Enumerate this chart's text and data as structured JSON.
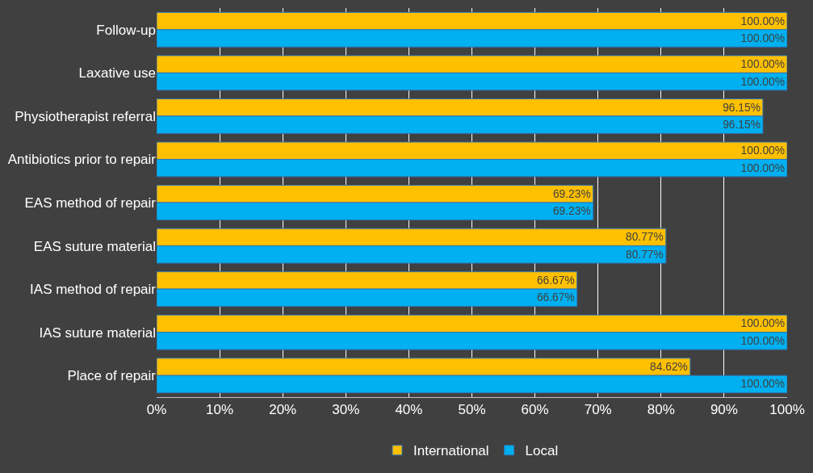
{
  "chart_data": {
    "type": "bar",
    "orientation": "horizontal",
    "categories": [
      "Follow-up",
      "Laxative use",
      "Physiotherapist referral",
      "Antibiotics prior to repair",
      "EAS method of repair",
      "EAS suture material",
      "IAS method of repair",
      "IAS suture material",
      "Place of repair"
    ],
    "series": [
      {
        "name": "International",
        "color": "#ffc000",
        "values": [
          100,
          100,
          96.15,
          100,
          69.23,
          80.77,
          66.67,
          100,
          84.62
        ],
        "value_labels": [
          "100.00%",
          "100.00%",
          "96.15%",
          "100.00%",
          "69.23%",
          "80.77%",
          "66.67%",
          "100.00%",
          "84.62%"
        ]
      },
      {
        "name": "Local",
        "color": "#00b0f0",
        "values": [
          100,
          100,
          96.15,
          100,
          69.23,
          80.77,
          66.67,
          100,
          100
        ],
        "value_labels": [
          "100.00%",
          "100.00%",
          "96.15%",
          "100.00%",
          "69.23%",
          "80.77%",
          "66.67%",
          "100.00%",
          "100.00%"
        ]
      }
    ],
    "xlim": [
      0,
      100
    ],
    "xticks": [
      {
        "value": 0,
        "label": "0%"
      },
      {
        "value": 10,
        "label": "10%"
      },
      {
        "value": 20,
        "label": "20%"
      },
      {
        "value": 30,
        "label": "30%"
      },
      {
        "value": 40,
        "label": "40%"
      },
      {
        "value": 50,
        "label": "50%"
      },
      {
        "value": 60,
        "label": "60%"
      },
      {
        "value": 70,
        "label": "70%"
      },
      {
        "value": 80,
        "label": "80%"
      },
      {
        "value": 90,
        "label": "90%"
      },
      {
        "value": 100,
        "label": "100%"
      }
    ],
    "grid": "x",
    "legend": "bottom"
  }
}
